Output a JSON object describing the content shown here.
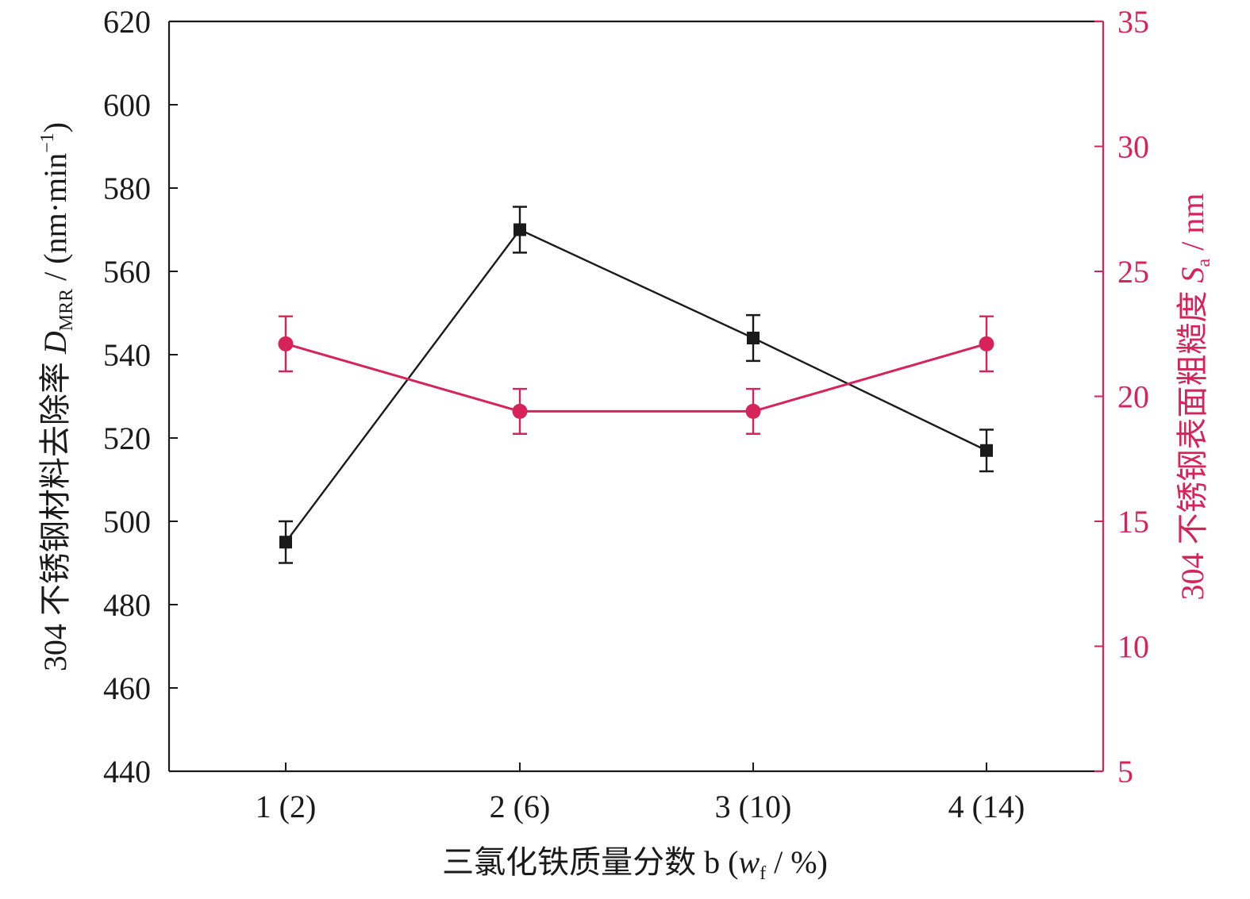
{
  "chart_data": {
    "type": "line",
    "categories": [
      "1 (2)",
      "2 (6)",
      "3 (10)",
      "4 (14)"
    ],
    "x_axis": {
      "label_prefix": "三氯化铁质量分数 b (",
      "label_var": "w",
      "label_sub": "f",
      "label_suffix": " / %)"
    },
    "y_left": {
      "label_prefix": "304 不锈钢材料去除率 ",
      "label_var": "D",
      "label_sub": "MRR",
      "label_unit_pre": " / (nm·min",
      "label_sup": "−1",
      "label_unit_post": ")",
      "range": [
        440,
        620
      ],
      "ticks": [
        440,
        460,
        480,
        500,
        520,
        540,
        560,
        580,
        600,
        620
      ],
      "color": "#1a1a1a"
    },
    "y_right": {
      "label_prefix": "304 不锈钢表面粗糙度 ",
      "label_var": "S",
      "label_sub": "a",
      "label_suffix": " / nm",
      "range": [
        5,
        35
      ],
      "ticks": [
        5,
        10,
        15,
        20,
        25,
        30,
        35
      ],
      "color": "#d6245a"
    },
    "series": [
      {
        "axis": "left",
        "marker": "square",
        "color": "#1a1a1a",
        "values": [
          495,
          570,
          544,
          517
        ],
        "errors": [
          5,
          5.5,
          5.5,
          5
        ]
      },
      {
        "axis": "right",
        "marker": "circle",
        "color": "#d6245a",
        "values": [
          22.1,
          19.4,
          19.4,
          22.1
        ],
        "errors": [
          1.1,
          0.9,
          0.9,
          1.1
        ]
      }
    ],
    "grid": false,
    "legend": "none"
  }
}
